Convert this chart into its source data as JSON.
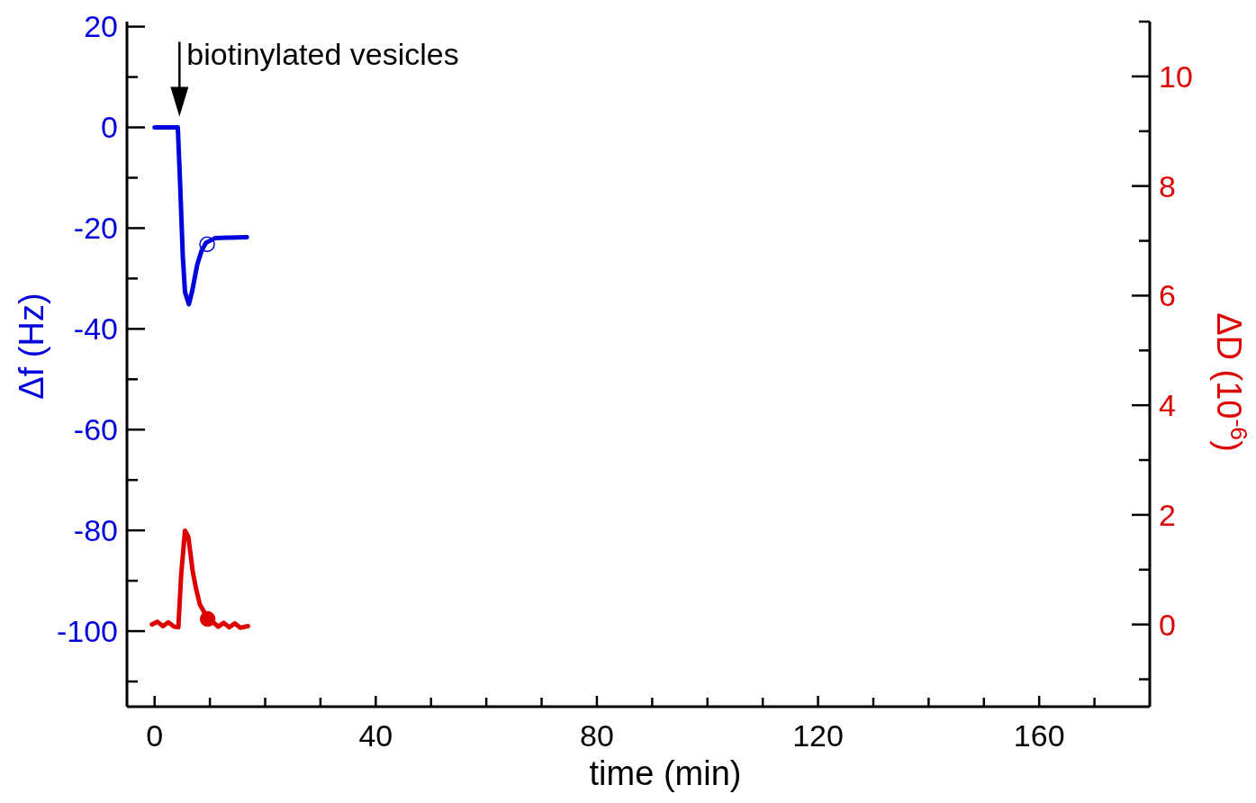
{
  "chart_data": {
    "type": "line",
    "xlabel": "time (min)",
    "ylabel": "Δf (Hz)",
    "y2label": "ΔD (10$^{-6}$)",
    "xlim": [
      -5,
      180
    ],
    "xticks": [
      0,
      {
        "value": 10,
        "label": null
      },
      {
        "value": 20,
        "label": null
      },
      {
        "value": 30,
        "label": null
      },
      40,
      {
        "value": 50,
        "label": null
      },
      {
        "value": 60,
        "label": null
      },
      {
        "value": 70,
        "label": null
      },
      80,
      {
        "value": 90,
        "label": null
      },
      {
        "value": 100,
        "label": null
      },
      {
        "value": 110,
        "label": null
      },
      120,
      {
        "value": 130,
        "label": null
      },
      {
        "value": 140,
        "label": null
      },
      {
        "value": 150,
        "label": null
      },
      160,
      {
        "value": 170,
        "label": null
      }
    ],
    "ylim": [
      -115,
      21
    ],
    "yticks": [
      {
        "value": -110,
        "label": null
      },
      -100,
      {
        "value": -90,
        "label": null
      },
      -80,
      {
        "value": -70,
        "label": null
      },
      -60,
      {
        "value": -50,
        "label": null
      },
      -40,
      {
        "value": -30,
        "label": null
      },
      -20,
      {
        "value": -10,
        "label": null
      },
      0,
      {
        "value": 10,
        "label": null
      },
      20
    ],
    "y2lim": [
      -1.5,
      11
    ],
    "y2ticks": [
      {
        "value": -1,
        "label": null
      },
      0,
      {
        "value": 1,
        "label": null
      },
      2,
      {
        "value": 3,
        "label": null
      },
      4,
      {
        "value": 5,
        "label": null
      },
      6,
      {
        "value": 7,
        "label": null
      },
      8,
      {
        "value": 9,
        "label": null
      },
      10,
      {
        "value": 11,
        "label": null
      }
    ],
    "annotations": [
      {
        "text": "biotinylated vesicles",
        "x": 4.5,
        "y": 0
      }
    ],
    "series": [
      {
        "color": "#0000dd",
        "x": [
          0,
          2,
          4.2,
          4.6,
          5.1,
          5.5,
          6.2,
          6.8,
          7.7,
          8.5,
          9.3,
          10.9,
          13,
          16.7
        ],
        "values": [
          0,
          0,
          0,
          -10.7,
          -25.5,
          -32.7,
          -35.1,
          -32.5,
          -27.3,
          -24.5,
          -22.9,
          -22,
          -21.9,
          -21.8
        ]
      },
      {
        "color": "#dd0000",
        "axis": "y2",
        "x": [
          -0.5,
          0.5,
          1.5,
          2.5,
          3.5,
          4.3,
          4.8,
          5.5,
          6.1,
          6.9,
          7.5,
          8.2,
          9.6,
          10.5,
          11.5,
          12.5,
          13.5,
          14.5,
          15.5,
          16.9
        ],
        "values": [
          0.0,
          0.05,
          -0.03,
          0.04,
          -0.04,
          -0.05,
          0.9,
          1.71,
          1.6,
          0.97,
          0.65,
          0.36,
          0.12,
          0.05,
          -0.04,
          0.03,
          -0.05,
          0.02,
          -0.06,
          -0.03
        ]
      },
      {
        "type": "scatter",
        "marker": "circle",
        "color": "#0000dd",
        "x": [
          9.5
        ],
        "values": [
          -23.2
        ]
      },
      {
        "type": "scatter",
        "marker": "circle",
        "color": "#dd0000",
        "axis": "y2",
        "x": [
          9.6
        ],
        "values": [
          0.1
        ]
      }
    ]
  }
}
